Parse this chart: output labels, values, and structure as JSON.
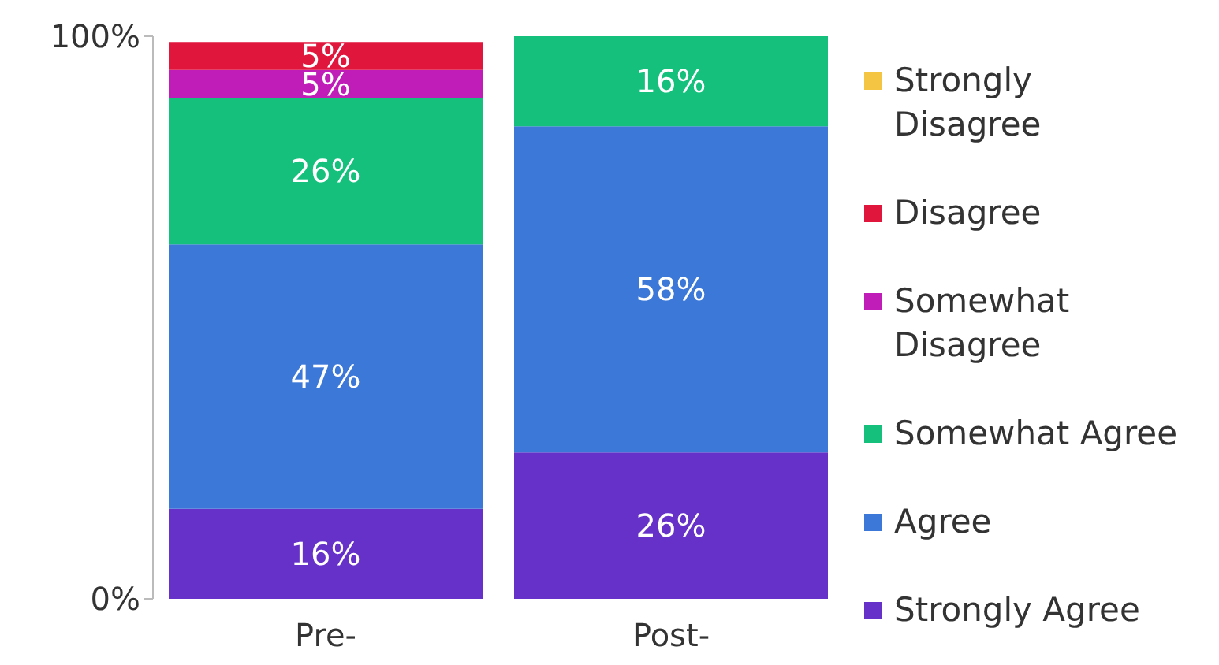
{
  "chart_data": {
    "type": "bar",
    "stacked": true,
    "categories": [
      "Pre-",
      "Post-"
    ],
    "series": [
      {
        "name": "Strongly Agree",
        "color": "#6531c8",
        "values": [
          16,
          26
        ],
        "value_labels": [
          "16%",
          "26%"
        ]
      },
      {
        "name": "Agree",
        "color": "#3c78d8",
        "values": [
          47,
          58
        ],
        "value_labels": [
          "47%",
          "58%"
        ]
      },
      {
        "name": "Somewhat Agree",
        "color": "#14c07c",
        "values": [
          26,
          16
        ],
        "value_labels": [
          "26%",
          "16%"
        ]
      },
      {
        "name": "Somewhat Disagree",
        "color": "#c01cb8",
        "values": [
          5,
          0
        ],
        "value_labels": [
          "5%",
          null
        ]
      },
      {
        "name": "Disagree",
        "color": "#e0163c",
        "values": [
          5,
          0
        ],
        "value_labels": [
          "5%",
          null
        ]
      },
      {
        "name": "Strongly Disagree",
        "color": "#f4c542",
        "values": [
          0,
          0
        ],
        "value_labels": [
          null,
          null
        ]
      }
    ],
    "ylim": [
      0,
      100
    ],
    "yticks": [
      {
        "value": 0,
        "label": "0%"
      },
      {
        "value": 100,
        "label": "100%"
      }
    ],
    "grid": false,
    "legend": "right"
  }
}
